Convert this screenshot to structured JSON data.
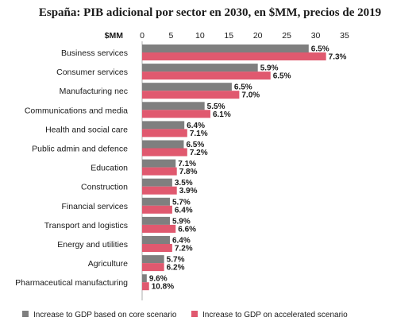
{
  "chart_data": {
    "type": "bar",
    "orientation": "horizontal",
    "title": "España: PIB adicional por sector en 2030, en $MM, precios de 2019",
    "unit_label": "$MM",
    "xlim": [
      0,
      35
    ],
    "ticks": [
      0,
      5,
      10,
      15,
      20,
      25,
      30,
      35
    ],
    "tick_labels": [
      "0",
      "5",
      "10",
      "15",
      "20",
      "25",
      "30",
      "35"
    ],
    "grid": false,
    "legend_position": "bottom",
    "categories": [
      "Business services",
      "Consumer services",
      "Manufacturing nec",
      "Communications and media",
      "Health and social care",
      "Public admin and defence",
      "Education",
      "Construction",
      "Financial services",
      "Transport and logistics",
      "Energy and utilities",
      "Agriculture",
      "Pharmaceutical manufacturing"
    ],
    "series": [
      {
        "name": "Increase to GDP based on core scenario",
        "color": "#7f7f7f",
        "values": [
          28.8,
          20.0,
          15.5,
          10.8,
          7.3,
          7.2,
          5.8,
          5.2,
          4.8,
          4.8,
          4.8,
          3.8,
          0.8
        ],
        "labels": [
          "6.5%",
          "5.9%",
          "6.5%",
          "5.5%",
          "6.4%",
          "6.5%",
          "7.1%",
          "3.5%",
          "5.7%",
          "5.9%",
          "6.4%",
          "5.7%",
          "9.6%"
        ]
      },
      {
        "name": "Increase to GDP on accelerated scenario",
        "color": "#e0596f",
        "values": [
          31.8,
          22.2,
          16.8,
          11.8,
          7.8,
          7.8,
          6.0,
          6.0,
          5.2,
          5.8,
          5.2,
          3.8,
          1.2
        ],
        "labels": [
          "7.3%",
          "6.5%",
          "7.0%",
          "6.1%",
          "7.1%",
          "7.2%",
          "7.8%",
          "3.9%",
          "6.4%",
          "6.6%",
          "7.2%",
          "6.2%",
          "10.8%"
        ]
      }
    ]
  }
}
